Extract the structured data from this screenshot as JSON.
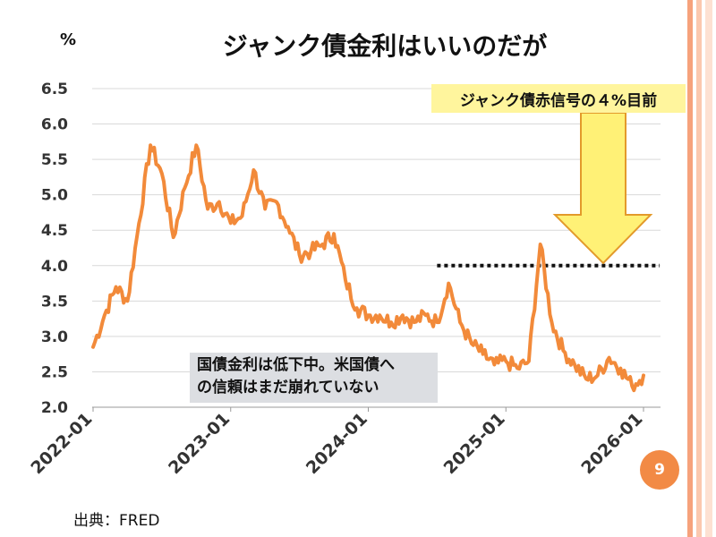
{
  "slide": {
    "unit": "%",
    "title": "ジャンク債金利はいいのだが",
    "page_number": "9",
    "source": "出典：FRED",
    "colors": {
      "line": "#f28a3a",
      "signal_box": "#fff59d",
      "note_box": "#dcdee2",
      "accent": "#f6a27c"
    }
  },
  "annotations": {
    "signal_label": "ジャンク債赤信号の４%目前",
    "note_line1": "国債金利は低下中。米国債へ",
    "note_line2": "の信頼はまだ崩れていない"
  },
  "chart_data": {
    "type": "line",
    "title": "ジャンク債金利はいいのだが",
    "ylabel": "%",
    "xlabel": "",
    "ylim": [
      2.0,
      6.5
    ],
    "yticks": [
      "6.5",
      "6.0",
      "5.5",
      "5.0",
      "4.5",
      "4.0",
      "3.5",
      "3.0",
      "2.5",
      "2.0"
    ],
    "xticks": [
      "2022-01",
      "2023-01",
      "2024-01",
      "2025-01",
      "2026-01"
    ],
    "grid": true,
    "reference_line": {
      "y": 4.0,
      "style": "dotted",
      "x_from": "2024-07",
      "x_to": "2026-01"
    },
    "series": [
      {
        "values_x": [
          "2022-01",
          "2022-02",
          "2022-03",
          "2022-04",
          "2022-05",
          "2022-06",
          "2022-07",
          "2022-08",
          "2022-09",
          "2022-10",
          "2022-11",
          "2022-12",
          "2023-01",
          "2023-02",
          "2023-03",
          "2023-04",
          "2023-05",
          "2023-06",
          "2023-07",
          "2023-08",
          "2023-09",
          "2023-10",
          "2023-11",
          "2023-12",
          "2024-01",
          "2024-02",
          "2024-03",
          "2024-04",
          "2024-05",
          "2024-06",
          "2024-07",
          "2024-08",
          "2024-09",
          "2024-10",
          "2024-11",
          "2024-12",
          "2025-01",
          "2025-02",
          "2025-03",
          "2025-04",
          "2025-05",
          "2025-06",
          "2025-07",
          "2025-08",
          "2025-09",
          "2025-10",
          "2025-11",
          "2025-12",
          "2026-01"
        ],
        "values": [
          2.85,
          3.3,
          3.7,
          3.5,
          4.6,
          5.7,
          5.3,
          4.4,
          5.1,
          5.7,
          4.8,
          4.9,
          4.6,
          4.7,
          5.35,
          4.8,
          4.9,
          4.55,
          4.15,
          4.2,
          4.3,
          4.45,
          3.8,
          3.4,
          3.3,
          3.3,
          3.2,
          3.3,
          3.2,
          3.3,
          3.2,
          3.75,
          3.2,
          2.9,
          2.75,
          2.6,
          2.65,
          2.55,
          2.65,
          4.3,
          3.2,
          2.8,
          2.6,
          2.4,
          2.45,
          2.7,
          2.55,
          2.3,
          2.45
        ]
      }
    ]
  }
}
